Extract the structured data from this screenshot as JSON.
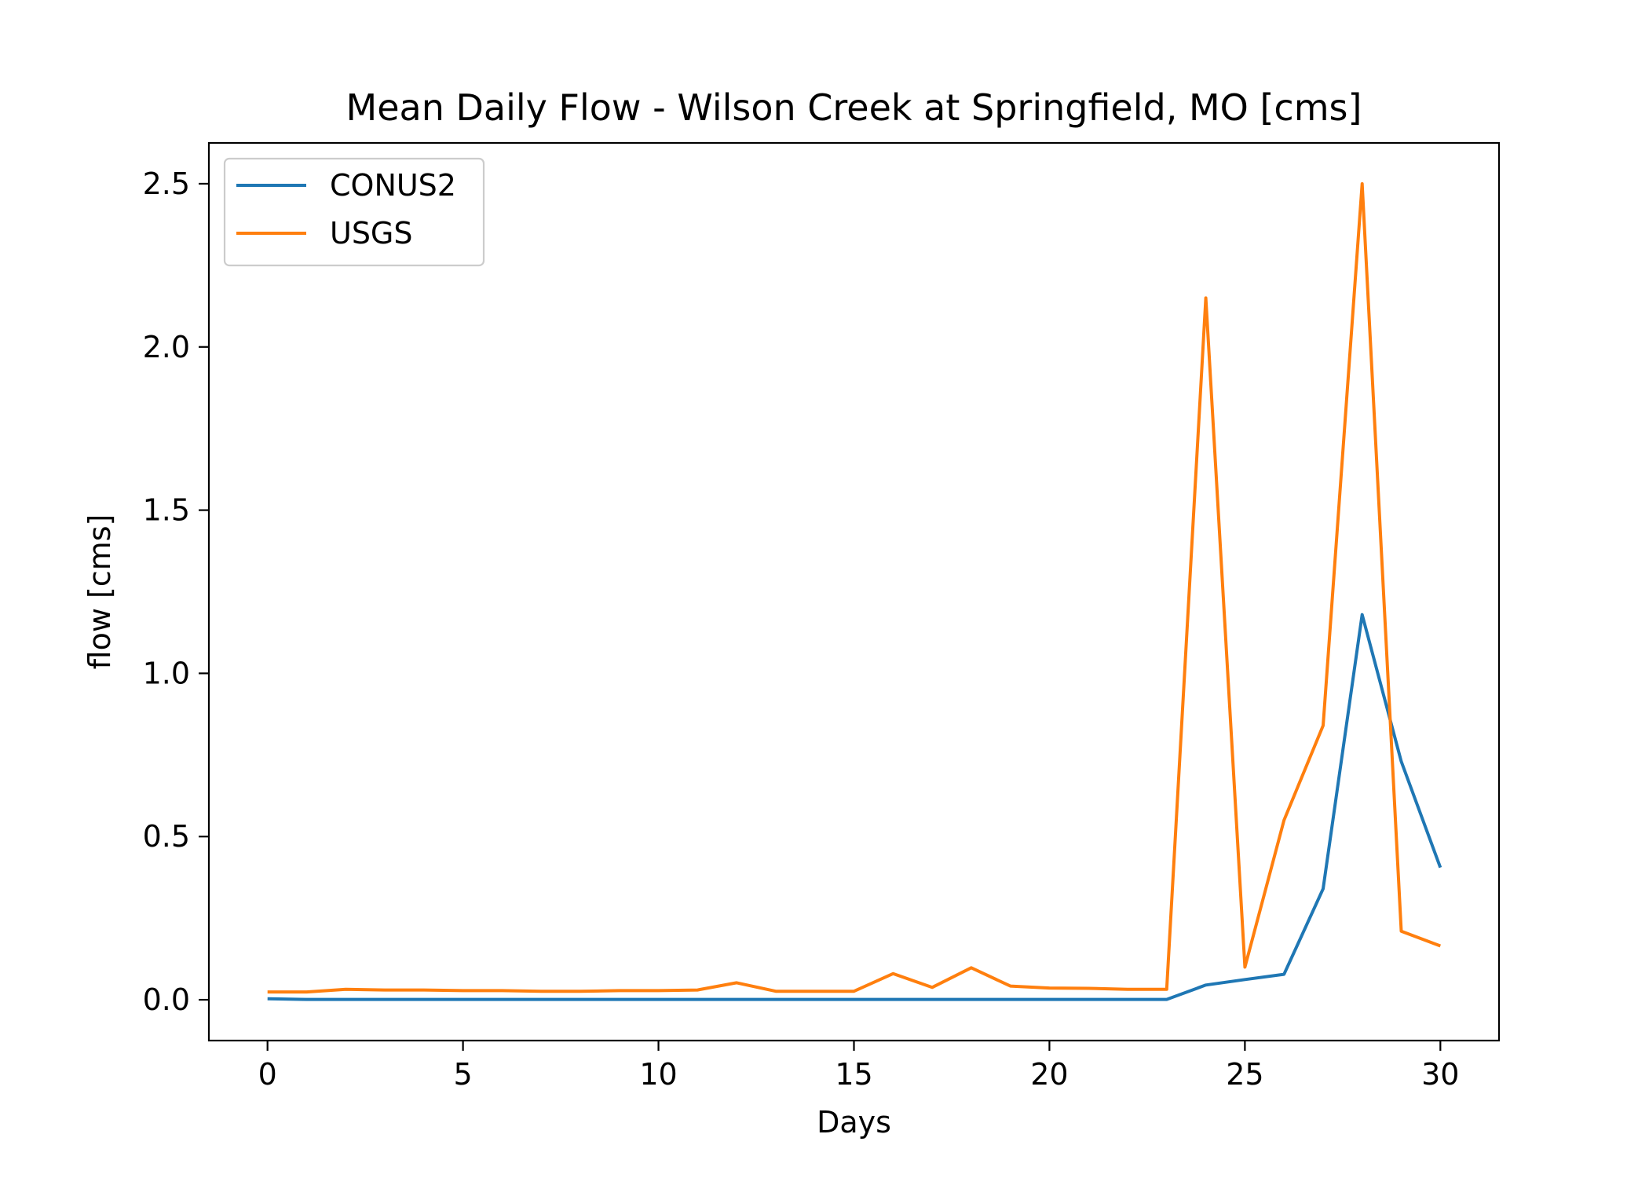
{
  "chart_data": {
    "type": "line",
    "title": "Mean Daily Flow - Wilson Creek at Springfield, MO [cms]",
    "xlabel": "Days",
    "ylabel": "flow [cms]",
    "xlim": [
      -1.5,
      31.5
    ],
    "ylim": [
      -0.125,
      2.625
    ],
    "xticks": [
      0,
      5,
      10,
      15,
      20,
      25,
      30
    ],
    "xtick_labels": [
      "0",
      "5",
      "10",
      "15",
      "20",
      "25",
      "30"
    ],
    "yticks": [
      0.0,
      0.5,
      1.0,
      1.5,
      2.0,
      2.5
    ],
    "ytick_labels": [
      "0.0",
      "0.5",
      "1.0",
      "1.5",
      "2.0",
      "2.5"
    ],
    "grid": false,
    "legend_position": "upper-left",
    "x": [
      0,
      1,
      2,
      3,
      4,
      5,
      6,
      7,
      8,
      9,
      10,
      11,
      12,
      13,
      14,
      15,
      16,
      17,
      18,
      19,
      20,
      21,
      22,
      23,
      24,
      25,
      26,
      27,
      28,
      29,
      30
    ],
    "series": [
      {
        "name": "CONUS2",
        "color": "#1f77b4",
        "values": [
          0.003,
          0.001,
          0.001,
          0.001,
          0.001,
          0.001,
          0.001,
          0.001,
          0.001,
          0.001,
          0.001,
          0.001,
          0.001,
          0.001,
          0.001,
          0.001,
          0.001,
          0.001,
          0.001,
          0.001,
          0.001,
          0.001,
          0.001,
          0.001,
          0.045,
          0.062,
          0.078,
          0.34,
          1.18,
          0.73,
          0.405
        ]
      },
      {
        "name": "USGS",
        "color": "#ff7f0e",
        "values": [
          0.024,
          0.024,
          0.032,
          0.03,
          0.03,
          0.028,
          0.028,
          0.026,
          0.026,
          0.028,
          0.028,
          0.03,
          0.052,
          0.026,
          0.026,
          0.026,
          0.08,
          0.038,
          0.098,
          0.042,
          0.036,
          0.035,
          0.032,
          0.032,
          2.15,
          0.1,
          0.55,
          0.84,
          2.5,
          0.21,
          0.165
        ]
      }
    ]
  }
}
